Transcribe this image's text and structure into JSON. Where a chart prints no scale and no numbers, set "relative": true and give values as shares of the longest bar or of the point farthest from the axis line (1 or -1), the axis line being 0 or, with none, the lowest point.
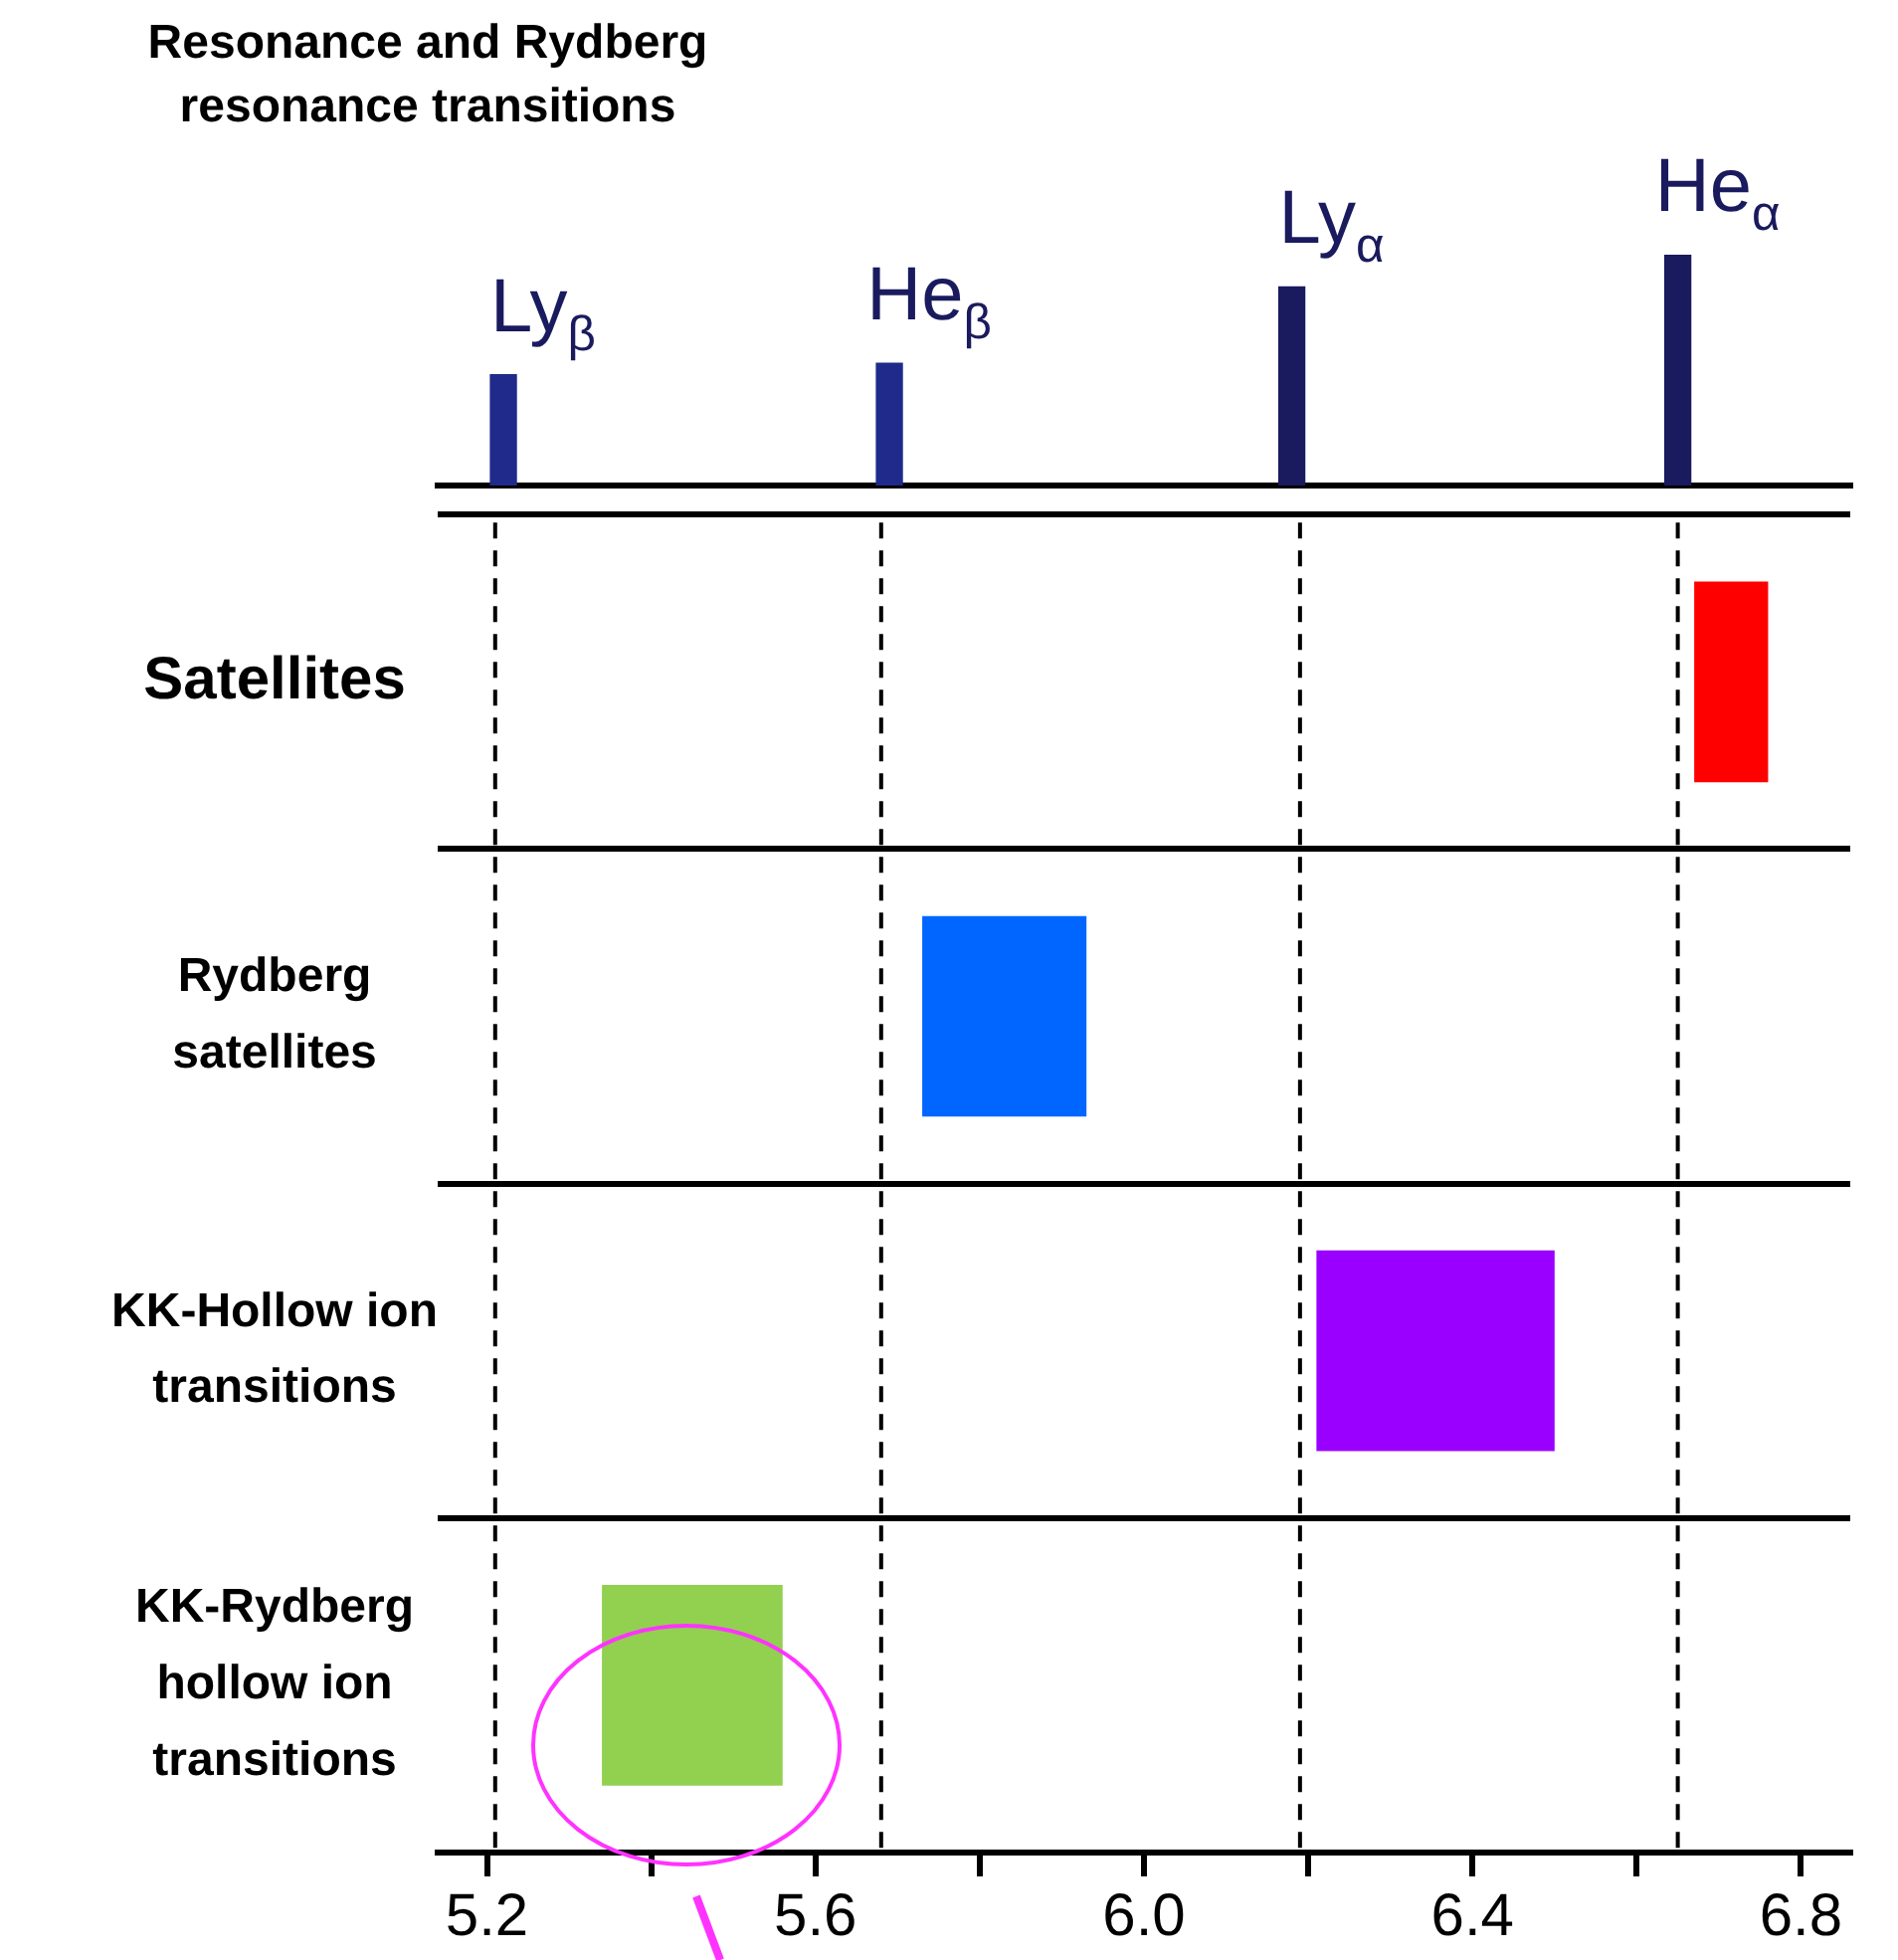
{
  "chart_data": [
    {
      "type": "bar",
      "title": "Resonance and Rydberg resonance transitions",
      "x": [
        5.22,
        5.69,
        6.18,
        6.65
      ],
      "values": [
        0.48,
        0.53,
        0.86,
        1
      ],
      "colors": [
        "#1f2a8a",
        "#1f2a8a",
        "#1a1a5e",
        "#1a1a5e"
      ],
      "relative": true,
      "xlim": [
        5.14,
        6.86
      ],
      "annotations": [
        {
          "text": "Ly$_{β}$",
          "x": 5.22,
          "y": 0.48
        },
        {
          "text": "He$_{β}$",
          "x": 5.69,
          "y": 0.53
        },
        {
          "text": "Ly$_{α}$",
          "x": 6.18,
          "y": 0.86
        },
        {
          "text": "He$_{α}$",
          "x": 6.65,
          "y": 1
        }
      ]
    },
    {
      "type": "bar",
      "orientation": "horizontal",
      "categories": [
        "Satellites",
        "Rydberg satellites",
        "KK-Hollow ion transitions",
        "KK-Rydberg hollow ion transitions"
      ],
      "base": [
        6.67,
        5.73,
        6.21,
        5.34
      ],
      "values": [
        0.09,
        0.2,
        0.29,
        0.22
      ],
      "colors": [
        "#ff0000",
        "#0066ff",
        "#9900ff",
        "#92d050"
      ],
      "xlim": [
        5.14,
        6.86
      ],
      "grid": "y",
      "xticks": [
        5.2,
        {
          "value": 5.4,
          "label": null
        },
        5.6,
        {
          "value": 5.8,
          "label": null
        },
        "6.0",
        {
          "value": 6.2,
          "label": null
        },
        6.4,
        {
          "value": 6.6,
          "label": null
        },
        6.8
      ],
      "ref_lines": [
        {
          "axis": "x",
          "value": 5.21,
          "line_style": "dashed"
        },
        {
          "axis": "x",
          "value": 5.68,
          "line_style": "dashed"
        },
        {
          "axis": "x",
          "value": 6.19,
          "line_style": "dashed"
        },
        {
          "axis": "x",
          "value": 6.65,
          "line_style": "dashed"
        }
      ]
    }
  ]
}
